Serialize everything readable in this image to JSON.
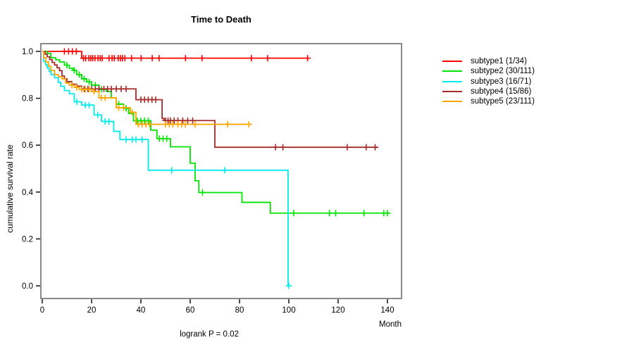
{
  "chart_data": {
    "type": "line",
    "chart_kind": "kaplan-meier-survival-step",
    "title": "Time to Death",
    "xlabel": "Month",
    "ylabel": "cumulative survival rate",
    "annotation": "logrank P = 0.02",
    "xlim": [
      0,
      146
    ],
    "ylim": [
      0,
      1.02
    ],
    "xticks": [
      0,
      20,
      40,
      60,
      80,
      100,
      120,
      140
    ],
    "yticks": [
      0.0,
      0.2,
      0.4,
      0.6,
      0.8,
      1.0
    ],
    "grid": false,
    "legend_position": "right-outside",
    "series": [
      {
        "name": "subtype1 (1/34)",
        "color": "#ff0000",
        "steps": [
          [
            0,
            1.0
          ],
          [
            16,
            0.971
          ]
        ],
        "end": 107.6,
        "censors": [
          [
            9,
            1.0
          ],
          [
            10.7,
            1.0
          ],
          [
            12.2,
            1.0
          ],
          [
            13.8,
            1.0
          ],
          [
            16.7,
            0.971
          ],
          [
            17.6,
            0.971
          ],
          [
            18.9,
            0.971
          ],
          [
            19.7,
            0.971
          ],
          [
            20.5,
            0.971
          ],
          [
            21.4,
            0.971
          ],
          [
            22.6,
            0.971
          ],
          [
            23.5,
            0.971
          ],
          [
            24.3,
            0.971
          ],
          [
            27.1,
            0.971
          ],
          [
            28.3,
            0.971
          ],
          [
            29.2,
            0.971
          ],
          [
            30.8,
            0.971
          ],
          [
            31.7,
            0.971
          ],
          [
            32.5,
            0.971
          ],
          [
            33.5,
            0.971
          ],
          [
            36.2,
            0.971
          ],
          [
            40.1,
            0.971
          ],
          [
            44.6,
            0.971
          ],
          [
            47.4,
            0.971
          ],
          [
            58.1,
            0.971
          ],
          [
            64.8,
            0.971
          ],
          [
            84.8,
            0.971
          ],
          [
            91.4,
            0.971
          ],
          [
            107.6,
            0.971
          ]
        ]
      },
      {
        "name": "subtype2 (30/111)",
        "color": "#00e400",
        "steps": [
          [
            0,
            1.0
          ],
          [
            2,
            0.991
          ],
          [
            3.5,
            0.973
          ],
          [
            5.5,
            0.964
          ],
          [
            7,
            0.955
          ],
          [
            9,
            0.941
          ],
          [
            11,
            0.928
          ],
          [
            12.5,
            0.919
          ],
          [
            14,
            0.901
          ],
          [
            16,
            0.883
          ],
          [
            18,
            0.87
          ],
          [
            20,
            0.856
          ],
          [
            23,
            0.838
          ],
          [
            26,
            0.829
          ],
          [
            28,
            0.802
          ],
          [
            30,
            0.775
          ],
          [
            33,
            0.757
          ],
          [
            35,
            0.735
          ],
          [
            37,
            0.704
          ],
          [
            44,
            0.664
          ],
          [
            46.5,
            0.628
          ],
          [
            52,
            0.593
          ],
          [
            60,
            0.523
          ],
          [
            62,
            0.448
          ],
          [
            63.5,
            0.398
          ],
          [
            81,
            0.356
          ],
          [
            92.5,
            0.31
          ]
        ],
        "end": 141,
        "censors": [
          [
            10,
            0.941
          ],
          [
            13,
            0.919
          ],
          [
            15,
            0.901
          ],
          [
            17,
            0.883
          ],
          [
            19,
            0.87
          ],
          [
            21.5,
            0.856
          ],
          [
            24,
            0.838
          ],
          [
            31,
            0.775
          ],
          [
            34,
            0.757
          ],
          [
            38.5,
            0.704
          ],
          [
            40,
            0.704
          ],
          [
            41.5,
            0.704
          ],
          [
            43,
            0.704
          ],
          [
            47.5,
            0.628
          ],
          [
            49,
            0.628
          ],
          [
            50.5,
            0.628
          ],
          [
            65,
            0.398
          ],
          [
            102,
            0.31
          ],
          [
            116.5,
            0.31
          ],
          [
            119,
            0.31
          ],
          [
            130.5,
            0.31
          ],
          [
            138.5,
            0.31
          ],
          [
            140,
            0.31
          ]
        ]
      },
      {
        "name": "subtype3 (16/71)",
        "color": "#00ecec",
        "steps": [
          [
            0,
            1.0
          ],
          [
            0.6,
            0.957
          ],
          [
            1.3,
            0.943
          ],
          [
            2,
            0.929
          ],
          [
            2.8,
            0.915
          ],
          [
            3.5,
            0.901
          ],
          [
            5,
            0.887
          ],
          [
            6.5,
            0.868
          ],
          [
            7.5,
            0.851
          ],
          [
            9,
            0.833
          ],
          [
            11,
            0.819
          ],
          [
            13,
            0.785
          ],
          [
            16,
            0.771
          ],
          [
            21,
            0.729
          ],
          [
            24,
            0.701
          ],
          [
            29,
            0.659
          ],
          [
            31.5,
            0.624
          ],
          [
            43,
            0.493
          ],
          [
            99.7,
            0.0
          ]
        ],
        "end": 100,
        "censors": [
          [
            14,
            0.785
          ],
          [
            17.5,
            0.771
          ],
          [
            19,
            0.771
          ],
          [
            22.5,
            0.729
          ],
          [
            25.5,
            0.701
          ],
          [
            27,
            0.701
          ],
          [
            34,
            0.624
          ],
          [
            36.5,
            0.624
          ],
          [
            38,
            0.624
          ],
          [
            40.5,
            0.624
          ],
          [
            52.5,
            0.493
          ],
          [
            74,
            0.493
          ],
          [
            100,
            0.0
          ]
        ]
      },
      {
        "name": "subtype4 (15/86)",
        "color": "#a52a2a",
        "steps": [
          [
            0,
            1.0
          ],
          [
            1.2,
            0.988
          ],
          [
            2,
            0.977
          ],
          [
            3,
            0.965
          ],
          [
            4,
            0.953
          ],
          [
            5,
            0.942
          ],
          [
            6,
            0.93
          ],
          [
            7,
            0.918
          ],
          [
            8,
            0.895
          ],
          [
            9,
            0.883
          ],
          [
            10,
            0.871
          ],
          [
            12,
            0.86
          ],
          [
            14,
            0.852
          ],
          [
            16,
            0.84
          ],
          [
            38,
            0.794
          ],
          [
            48.6,
            0.714
          ],
          [
            49.4,
            0.705
          ],
          [
            70,
            0.591
          ]
        ],
        "end": 136.3,
        "censors": [
          [
            17,
            0.84
          ],
          [
            18.5,
            0.84
          ],
          [
            20,
            0.84
          ],
          [
            21.5,
            0.84
          ],
          [
            23,
            0.84
          ],
          [
            25,
            0.84
          ],
          [
            26.5,
            0.84
          ],
          [
            28,
            0.84
          ],
          [
            30,
            0.84
          ],
          [
            32,
            0.84
          ],
          [
            34,
            0.84
          ],
          [
            40,
            0.794
          ],
          [
            41.5,
            0.794
          ],
          [
            43,
            0.794
          ],
          [
            44.5,
            0.794
          ],
          [
            46,
            0.794
          ],
          [
            50,
            0.705
          ],
          [
            51,
            0.705
          ],
          [
            52,
            0.705
          ],
          [
            53.5,
            0.705
          ],
          [
            55,
            0.705
          ],
          [
            57,
            0.705
          ],
          [
            59,
            0.705
          ],
          [
            61,
            0.705
          ],
          [
            94.6,
            0.591
          ],
          [
            97.6,
            0.591
          ],
          [
            123.7,
            0.591
          ],
          [
            131.4,
            0.591
          ],
          [
            135,
            0.591
          ]
        ]
      },
      {
        "name": "subtype5 (23/111)",
        "color": "#ffa500",
        "steps": [
          [
            0,
            1.0
          ],
          [
            0.6,
            0.973
          ],
          [
            1.5,
            0.955
          ],
          [
            2.5,
            0.937
          ],
          [
            3.5,
            0.919
          ],
          [
            5,
            0.901
          ],
          [
            6.5,
            0.892
          ],
          [
            8,
            0.883
          ],
          [
            9.5,
            0.865
          ],
          [
            11,
            0.856
          ],
          [
            13,
            0.847
          ],
          [
            15,
            0.838
          ],
          [
            20,
            0.829
          ],
          [
            23,
            0.802
          ],
          [
            30,
            0.76
          ],
          [
            35.7,
            0.74
          ],
          [
            38,
            0.689
          ]
        ],
        "end": 83.8,
        "censors": [
          [
            12,
            0.856
          ],
          [
            14,
            0.847
          ],
          [
            16,
            0.838
          ],
          [
            17.5,
            0.838
          ],
          [
            19,
            0.838
          ],
          [
            21,
            0.829
          ],
          [
            24,
            0.802
          ],
          [
            25.5,
            0.802
          ],
          [
            31,
            0.76
          ],
          [
            33,
            0.76
          ],
          [
            36.5,
            0.74
          ],
          [
            39,
            0.689
          ],
          [
            40.5,
            0.689
          ],
          [
            42,
            0.689
          ],
          [
            43.5,
            0.689
          ],
          [
            50,
            0.689
          ],
          [
            51.5,
            0.689
          ],
          [
            53,
            0.689
          ],
          [
            55,
            0.689
          ],
          [
            56.5,
            0.689
          ],
          [
            58,
            0.689
          ],
          [
            62,
            0.689
          ],
          [
            75.2,
            0.689
          ],
          [
            83.8,
            0.689
          ]
        ]
      }
    ]
  }
}
